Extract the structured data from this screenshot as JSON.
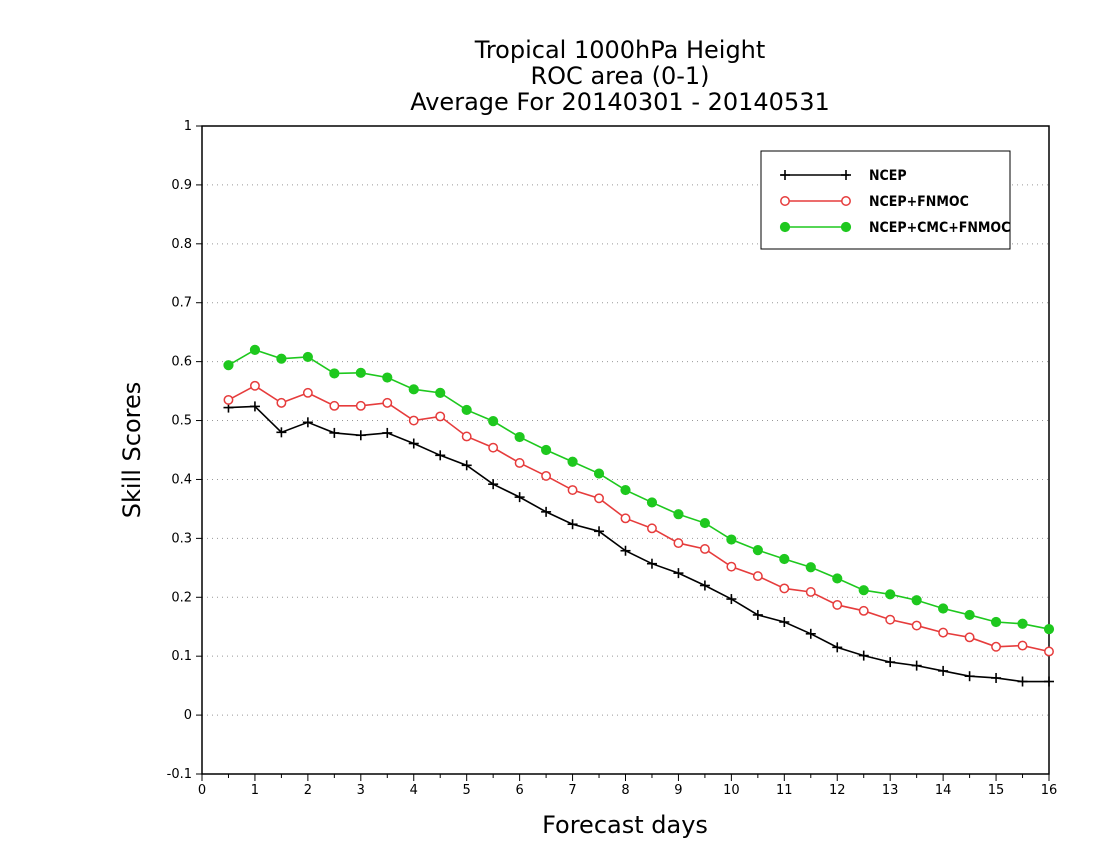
{
  "chart_data": {
    "type": "line",
    "title": [
      "Tropical 1000hPa Height",
      "ROC area (0-1)",
      "Average For 20140301 - 20140531"
    ],
    "xlabel": "Forecast days",
    "ylabel": "Skill Scores",
    "xlim": [
      0,
      16
    ],
    "ylim": [
      -0.1,
      1
    ],
    "x_ticks": [
      0,
      1,
      2,
      3,
      4,
      5,
      6,
      7,
      8,
      9,
      10,
      11,
      12,
      13,
      14,
      15,
      16
    ],
    "y_ticks": [
      -0.1,
      0,
      0.1,
      0.2,
      0.3,
      0.4,
      0.5,
      0.6,
      0.7,
      0.8,
      0.9,
      1
    ],
    "y_tick_labels": [
      "-0.1",
      "0",
      "0.1",
      "0.2",
      "0.3",
      "0.4",
      "0.5",
      "0.6",
      "0.7",
      "0.8",
      "0.9",
      "1"
    ],
    "grid": "horizontal dotted",
    "legend_position": "top-right",
    "x": [
      0.5,
      1,
      1.5,
      2,
      2.5,
      3,
      3.5,
      4,
      4.5,
      5,
      5.5,
      6,
      6.5,
      7,
      7.5,
      8,
      8.5,
      9,
      9.5,
      10,
      10.5,
      11,
      11.5,
      12,
      12.5,
      13,
      13.5,
      14,
      14.5,
      15,
      15.5,
      16
    ],
    "series": [
      {
        "name": "NCEP",
        "color": "#000000",
        "marker": "plus",
        "values": [
          0.522,
          0.524,
          0.48,
          0.497,
          0.479,
          0.475,
          0.479,
          0.461,
          0.441,
          0.424,
          0.392,
          0.37,
          0.345,
          0.324,
          0.312,
          0.279,
          0.257,
          0.241,
          0.22,
          0.197,
          0.17,
          0.158,
          0.138,
          0.115,
          0.101,
          0.09,
          0.084,
          0.075,
          0.066,
          0.063,
          0.057,
          0.057
        ]
      },
      {
        "name": "NCEP+FNMOC",
        "color": "#e63c3c",
        "marker": "open-circle",
        "values": [
          0.535,
          0.559,
          0.53,
          0.547,
          0.525,
          0.525,
          0.53,
          0.5,
          0.507,
          0.473,
          0.454,
          0.428,
          0.406,
          0.382,
          0.368,
          0.334,
          0.317,
          0.292,
          0.282,
          0.252,
          0.236,
          0.215,
          0.209,
          0.187,
          0.177,
          0.162,
          0.152,
          0.14,
          0.132,
          0.116,
          0.118,
          0.108
        ]
      },
      {
        "name": "NCEP+CMC+FNMOC",
        "color": "#1ec81e",
        "marker": "filled-circle",
        "values": [
          0.594,
          0.62,
          0.605,
          0.608,
          0.58,
          0.581,
          0.573,
          0.553,
          0.547,
          0.518,
          0.499,
          0.472,
          0.45,
          0.43,
          0.41,
          0.382,
          0.361,
          0.341,
          0.326,
          0.298,
          0.28,
          0.265,
          0.251,
          0.232,
          0.212,
          0.205,
          0.195,
          0.181,
          0.17,
          0.158,
          0.155,
          0.146
        ]
      }
    ]
  }
}
